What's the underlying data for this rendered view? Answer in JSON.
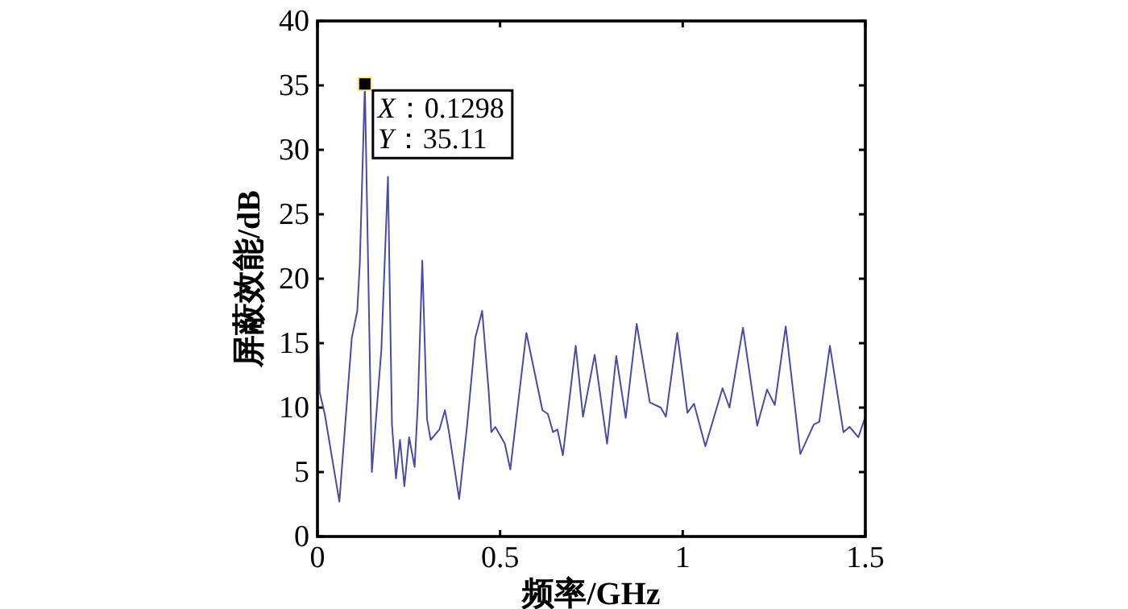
{
  "chart_data": {
    "type": "line",
    "xlabel": "频率/GHz",
    "ylabel": "屏蔽效能/dB",
    "xlim": [
      0,
      1.5
    ],
    "ylim": [
      0,
      40
    ],
    "xticks": [
      0,
      0.5,
      1,
      1.5
    ],
    "yticks": [
      0,
      5,
      10,
      15,
      20,
      25,
      30,
      35,
      40
    ],
    "grid": false,
    "line_style": "solid",
    "annotations": [
      {
        "text": "X：0.1298\nY：35.11",
        "x": 0.1298,
        "y": 35.11
      }
    ],
    "series": [
      {
        "color": "#4b4ba6",
        "x": [
          0,
          0.006,
          0.02,
          0.06,
          0.094,
          0.109,
          0.116,
          0.1298,
          0.149,
          0.175,
          0.193,
          0.204,
          0.215,
          0.226,
          0.238,
          0.251,
          0.266,
          0.275,
          0.287,
          0.3,
          0.31,
          0.334,
          0.349,
          0.359,
          0.388,
          0.41,
          0.432,
          0.451,
          0.469,
          0.476,
          0.487,
          0.513,
          0.528,
          0.572,
          0.616,
          0.631,
          0.645,
          0.657,
          0.672,
          0.707,
          0.727,
          0.759,
          0.793,
          0.818,
          0.844,
          0.874,
          0.91,
          0.94,
          0.954,
          0.985,
          1.013,
          1.031,
          1.062,
          1.109,
          1.128,
          1.165,
          1.204,
          1.231,
          1.252,
          1.282,
          1.322,
          1.359,
          1.374,
          1.403,
          1.44,
          1.457,
          1.481,
          1.5
        ],
        "values": [
          19.5,
          11.2,
          9.5,
          2.7,
          15.4,
          17.5,
          21.2,
          35.11,
          5.0,
          14.5,
          27.9,
          8.7,
          4.5,
          7.5,
          3.9,
          7.7,
          5.4,
          10.4,
          21.4,
          9.1,
          7.5,
          8.3,
          9.8,
          8.3,
          2.9,
          8.7,
          15.4,
          17.5,
          11.2,
          8.1,
          8.5,
          7.2,
          5.2,
          15.8,
          9.8,
          9.5,
          8.1,
          8.3,
          6.3,
          14.8,
          9.3,
          14.1,
          7.2,
          14.0,
          9.2,
          16.5,
          10.4,
          10.0,
          9.3,
          15.8,
          9.6,
          10.3,
          7.0,
          11.5,
          10.0,
          16.2,
          8.6,
          11.4,
          10.2,
          16.3,
          6.4,
          8.7,
          8.9,
          14.8,
          8.1,
          8.5,
          7.7,
          9.3
        ]
      }
    ]
  }
}
